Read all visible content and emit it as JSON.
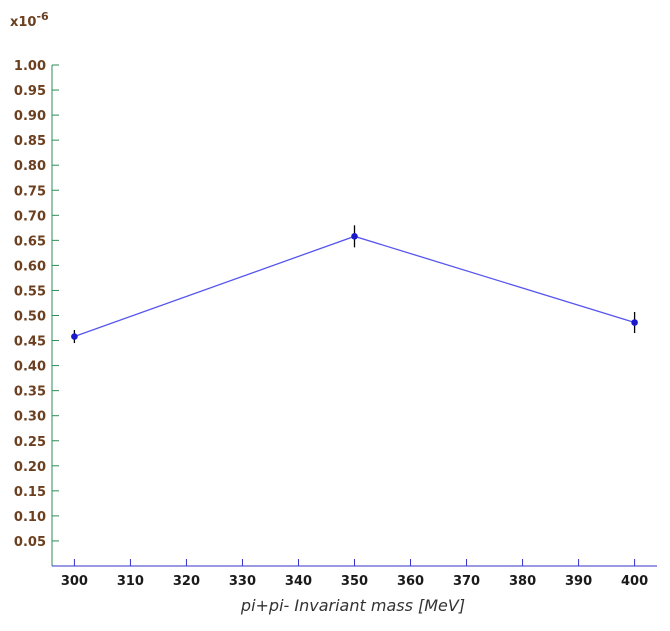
{
  "chart_data": {
    "type": "line",
    "x": [
      300,
      350,
      400
    ],
    "series": [
      {
        "values": [
          0.458,
          0.658,
          0.486
        ],
        "errors": [
          0.013,
          0.022,
          0.021
        ]
      }
    ],
    "xlabel": "pi+pi- Invariant mass    [MeV]",
    "ylabel": "",
    "y_multiplier": {
      "base": "x10",
      "exponent": "-6"
    },
    "xlim": [
      296,
      404
    ],
    "ylim": [
      0.0,
      1.0
    ],
    "x_ticks": [
      300,
      310,
      320,
      330,
      340,
      350,
      360,
      370,
      380,
      390,
      400
    ],
    "y_ticks": [
      "0.05",
      "0.10",
      "0.15",
      "0.20",
      "0.25",
      "0.30",
      "0.35",
      "0.40",
      "0.45",
      "0.50",
      "0.55",
      "0.60",
      "0.65",
      "0.70",
      "0.75",
      "0.80",
      "0.85",
      "0.90",
      "0.95",
      "1.00"
    ],
    "grid": false,
    "colors": {
      "line": "#5555ee",
      "marker": "#1a1acc",
      "error_bar": "#000000",
      "y_axis": "#2e8b57",
      "x_axis": "#3333cc"
    }
  }
}
